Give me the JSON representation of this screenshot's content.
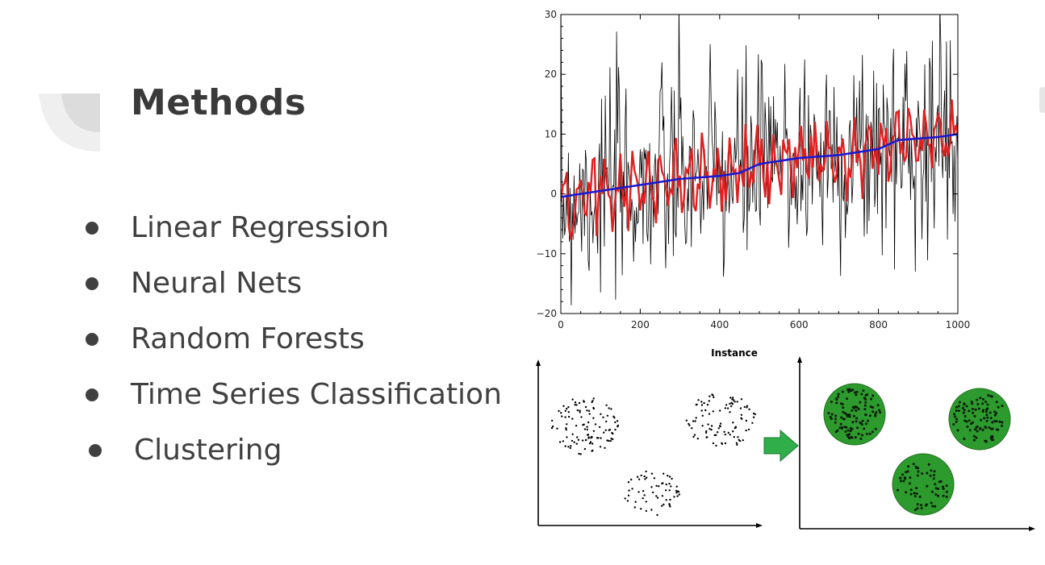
{
  "slide": {
    "title": "Methods",
    "bullets": [
      "Linear Regression",
      "Neural Nets",
      "Random Forests",
      "Time Series Classification",
      "Clustering"
    ]
  },
  "chart_data": [
    {
      "type": "line",
      "title": "",
      "xlabel": "Instance",
      "ylabel": "",
      "xlim": [
        0,
        1000
      ],
      "ylim": [
        -20,
        30
      ],
      "x_ticks": [
        "0",
        "200",
        "400",
        "600",
        "800",
        "1000"
      ],
      "y_ticks": [
        "30",
        "20",
        "10",
        "0",
        "−10",
        "−20"
      ],
      "grid": false,
      "series": [
        {
          "color": "#000000",
          "values": []
        },
        {
          "color": "#e02020",
          "values": []
        },
        {
          "color": "#1a1ad0",
          "x": [
            0,
            100,
            200,
            300,
            400,
            450,
            500,
            600,
            700,
            800,
            850,
            950,
            1000
          ],
          "values": [
            -0.5,
            0.5,
            1.5,
            2.5,
            3.0,
            3.5,
            5.0,
            6.0,
            6.5,
            7.5,
            9.0,
            9.5,
            10.0
          ]
        }
      ]
    },
    {
      "type": "scatter",
      "title": "",
      "description_panels": [
        "unclustered points",
        "clustered points"
      ],
      "cluster_color": "#2d9a2d",
      "arrow_color": "#2fae4a"
    }
  ]
}
